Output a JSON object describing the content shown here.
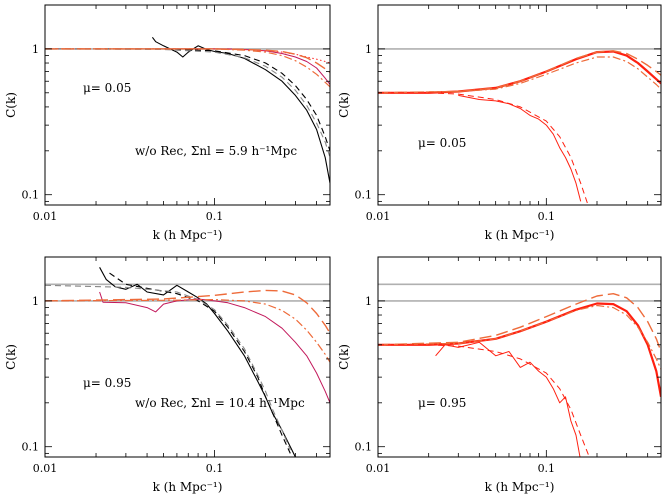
{
  "chart_data": [
    {
      "type": "line",
      "panel": "top-left",
      "xscale": "log",
      "yscale": "log",
      "xlim": [
        0.01,
        0.48
      ],
      "ylim": [
        0.085,
        2.0
      ],
      "xlabel": "k (h Mpc⁻¹)",
      "ylabel": "C(k)",
      "xticks": [
        "0.01",
        "0.1"
      ],
      "yticks": [
        "0.1",
        "1"
      ],
      "annotations": [
        "μ= 0.05",
        "w/o Rec, Σnl = 5.9 h⁻¹Mpc"
      ],
      "series": [
        {
          "style": "gray-reference",
          "color": "#b0b0b0",
          "x": [
            0.01,
            0.48
          ],
          "y": [
            1.0,
            1.0
          ]
        },
        {
          "style": "black-solid",
          "color": "#000000",
          "x": [
            0.043,
            0.045,
            0.05,
            0.06,
            0.065,
            0.07,
            0.075,
            0.08,
            0.09,
            0.1,
            0.12,
            0.15,
            0.2,
            0.25,
            0.3,
            0.35,
            0.4,
            0.45,
            0.48
          ],
          "y": [
            1.2,
            1.12,
            1.05,
            0.95,
            0.88,
            0.95,
            1.0,
            1.05,
            0.99,
            0.96,
            0.93,
            0.86,
            0.72,
            0.6,
            0.48,
            0.38,
            0.28,
            0.18,
            0.12
          ]
        },
        {
          "style": "black-dashed",
          "color": "#000000",
          "x": [
            0.01,
            0.05,
            0.1,
            0.15,
            0.2,
            0.25,
            0.3,
            0.35,
            0.4,
            0.45,
            0.48
          ],
          "y": [
            1.0,
            1.0,
            0.97,
            0.9,
            0.8,
            0.68,
            0.56,
            0.45,
            0.35,
            0.25,
            0.2
          ]
        },
        {
          "style": "gray-dashed",
          "color": "#888888",
          "x": [
            0.01,
            0.05,
            0.1,
            0.15,
            0.2,
            0.25,
            0.3,
            0.35,
            0.4,
            0.45,
            0.48
          ],
          "y": [
            1.0,
            0.99,
            0.95,
            0.87,
            0.76,
            0.64,
            0.52,
            0.41,
            0.31,
            0.23,
            0.18
          ]
        },
        {
          "style": "magenta-solid",
          "color": "#c2185b",
          "x": [
            0.05,
            0.07,
            0.1,
            0.12,
            0.15,
            0.2,
            0.25,
            0.3,
            0.35,
            0.4,
            0.45,
            0.48
          ],
          "y": [
            1.0,
            1.0,
            1.0,
            1.0,
            0.99,
            0.97,
            0.93,
            0.88,
            0.82,
            0.74,
            0.63,
            0.57
          ]
        },
        {
          "style": "red-dotted",
          "color": "#ff3030",
          "x": [
            0.01,
            0.1,
            0.15,
            0.2,
            0.25,
            0.3,
            0.35,
            0.4,
            0.45,
            0.48
          ],
          "y": [
            1.0,
            1.0,
            0.99,
            0.97,
            0.95,
            0.92,
            0.88,
            0.85,
            0.82,
            0.8
          ]
        },
        {
          "style": "orange-longdash",
          "color": "#ee6b3a",
          "x": [
            0.01,
            0.1,
            0.15,
            0.2,
            0.25,
            0.3,
            0.35,
            0.4,
            0.45,
            0.48
          ],
          "y": [
            1.0,
            1.0,
            0.99,
            0.98,
            0.96,
            0.92,
            0.87,
            0.8,
            0.73,
            0.69
          ]
        },
        {
          "style": "orange-dashdot",
          "color": "#ee6b3a",
          "x": [
            0.01,
            0.1,
            0.15,
            0.2,
            0.25,
            0.3,
            0.35,
            0.4,
            0.45,
            0.48
          ],
          "y": [
            1.0,
            1.0,
            0.98,
            0.95,
            0.9,
            0.83,
            0.75,
            0.67,
            0.59,
            0.55
          ]
        }
      ]
    },
    {
      "type": "line",
      "panel": "top-right",
      "xscale": "log",
      "yscale": "log",
      "xlim": [
        0.01,
        0.48
      ],
      "ylim": [
        0.085,
        2.0
      ],
      "xlabel": "k (h Mpc⁻¹)",
      "ylabel": "C(k)",
      "xticks": [
        "0.01",
        "0.1"
      ],
      "yticks": [
        "0.1",
        "1"
      ],
      "annotations": [
        "μ= 0.05"
      ],
      "series": [
        {
          "style": "gray-reference",
          "color": "#b0b0b0",
          "x": [
            0.01,
            0.48
          ],
          "y": [
            1.0,
            1.0
          ]
        },
        {
          "style": "red-thick-solid",
          "color": "#ff2010",
          "x": [
            0.01,
            0.02,
            0.03,
            0.05,
            0.07,
            0.1,
            0.15,
            0.2,
            0.25,
            0.3,
            0.35,
            0.4,
            0.45,
            0.48
          ],
          "y": [
            0.5,
            0.5,
            0.51,
            0.54,
            0.6,
            0.7,
            0.85,
            0.95,
            0.96,
            0.9,
            0.8,
            0.7,
            0.62,
            0.58
          ]
        },
        {
          "style": "orange-longdash",
          "color": "#ee6b3a",
          "x": [
            0.01,
            0.03,
            0.05,
            0.07,
            0.1,
            0.15,
            0.2,
            0.25,
            0.3,
            0.35,
            0.4,
            0.45,
            0.48
          ],
          "y": [
            0.5,
            0.51,
            0.54,
            0.6,
            0.7,
            0.86,
            0.95,
            0.97,
            0.93,
            0.85,
            0.77,
            0.7,
            0.66
          ]
        },
        {
          "style": "orange-dashdot",
          "color": "#ee6b3a",
          "x": [
            0.01,
            0.03,
            0.05,
            0.07,
            0.1,
            0.15,
            0.2,
            0.25,
            0.3,
            0.35,
            0.4,
            0.45,
            0.48
          ],
          "y": [
            0.5,
            0.51,
            0.53,
            0.58,
            0.67,
            0.8,
            0.88,
            0.88,
            0.82,
            0.73,
            0.64,
            0.57,
            0.53
          ]
        },
        {
          "style": "red-thin-solid",
          "color": "#ff2010",
          "x": [
            0.03,
            0.04,
            0.05,
            0.06,
            0.07,
            0.08,
            0.09,
            0.1,
            0.11,
            0.12,
            0.13,
            0.14,
            0.15,
            0.16
          ],
          "y": [
            0.48,
            0.45,
            0.44,
            0.42,
            0.39,
            0.35,
            0.33,
            0.3,
            0.26,
            0.21,
            0.18,
            0.15,
            0.12,
            0.09
          ]
        },
        {
          "style": "red-dashed",
          "color": "#ff2010",
          "x": [
            0.01,
            0.02,
            0.03,
            0.05,
            0.07,
            0.1,
            0.12,
            0.14,
            0.16,
            0.18
          ],
          "y": [
            0.5,
            0.5,
            0.49,
            0.45,
            0.4,
            0.32,
            0.25,
            0.18,
            0.12,
            0.08
          ]
        }
      ]
    },
    {
      "type": "line",
      "panel": "bottom-left",
      "xscale": "log",
      "yscale": "log",
      "xlim": [
        0.01,
        0.48
      ],
      "ylim": [
        0.085,
        2.0
      ],
      "xlabel": "k (h Mpc⁻¹)",
      "ylabel": "C(k)",
      "xticks": [
        "0.01",
        "0.1"
      ],
      "yticks": [
        "0.1",
        "1"
      ],
      "annotations": [
        "μ= 0.95",
        "w/o Rec, Σnl = 10.4 h⁻¹Mpc"
      ],
      "series": [
        {
          "style": "gray-reference",
          "color": "#b0b0b0",
          "x": [
            0.01,
            0.48
          ],
          "y": [
            1.0,
            1.0
          ]
        },
        {
          "style": "gray-reference-upper",
          "color": "#b0b0b0",
          "x": [
            0.01,
            0.48
          ],
          "y": [
            1.3,
            1.3
          ]
        },
        {
          "style": "black-solid",
          "color": "#000000",
          "x": [
            0.021,
            0.023,
            0.026,
            0.03,
            0.035,
            0.04,
            0.05,
            0.06,
            0.07,
            0.08,
            0.09,
            0.1,
            0.12,
            0.15,
            0.18,
            0.2,
            0.22,
            0.25,
            0.28,
            0.3
          ],
          "y": [
            1.7,
            1.4,
            1.25,
            1.2,
            1.3,
            1.15,
            1.1,
            1.28,
            1.15,
            1.05,
            0.95,
            0.82,
            0.62,
            0.42,
            0.28,
            0.22,
            0.17,
            0.13,
            0.1,
            0.085
          ]
        },
        {
          "style": "black-dashed",
          "color": "#000000",
          "x": [
            0.024,
            0.03,
            0.04,
            0.06,
            0.08,
            0.1,
            0.12,
            0.15,
            0.18,
            0.2,
            0.22,
            0.25,
            0.28
          ],
          "y": [
            1.55,
            1.3,
            1.22,
            1.12,
            1.0,
            0.85,
            0.66,
            0.45,
            0.3,
            0.22,
            0.17,
            0.12,
            0.09
          ]
        },
        {
          "style": "gray-dashed",
          "color": "#888888",
          "x": [
            0.01,
            0.03,
            0.06,
            0.08,
            0.1,
            0.12,
            0.15,
            0.18,
            0.2,
            0.22,
            0.25,
            0.28
          ],
          "y": [
            1.28,
            1.24,
            1.15,
            1.02,
            0.87,
            0.68,
            0.47,
            0.31,
            0.24,
            0.18,
            0.13,
            0.095
          ]
        },
        {
          "style": "magenta-solid",
          "color": "#c2185b",
          "x": [
            0.021,
            0.022,
            0.03,
            0.04,
            0.045,
            0.05,
            0.06,
            0.08,
            0.1,
            0.12,
            0.15,
            0.2,
            0.25,
            0.3,
            0.35,
            0.4,
            0.45,
            0.48
          ],
          "y": [
            1.15,
            0.98,
            0.97,
            0.9,
            0.84,
            0.95,
            1.0,
            1.03,
            1.0,
            0.97,
            0.9,
            0.78,
            0.65,
            0.52,
            0.42,
            0.32,
            0.24,
            0.2
          ]
        },
        {
          "style": "orange-longdash",
          "color": "#ee6b3a",
          "x": [
            0.01,
            0.05,
            0.1,
            0.15,
            0.2,
            0.25,
            0.3,
            0.35,
            0.4,
            0.45,
            0.48
          ],
          "y": [
            1.0,
            1.03,
            1.09,
            1.15,
            1.18,
            1.17,
            1.1,
            0.97,
            0.82,
            0.68,
            0.6
          ]
        },
        {
          "style": "orange-dashdot",
          "color": "#ee6b3a",
          "x": [
            0.01,
            0.05,
            0.1,
            0.15,
            0.2,
            0.25,
            0.3,
            0.35,
            0.4,
            0.45,
            0.48
          ],
          "y": [
            1.0,
            1.01,
            1.02,
            1.0,
            0.95,
            0.86,
            0.75,
            0.63,
            0.52,
            0.43,
            0.38
          ]
        }
      ]
    },
    {
      "type": "line",
      "panel": "bottom-right",
      "xscale": "log",
      "yscale": "log",
      "xlim": [
        0.01,
        0.48
      ],
      "ylim": [
        0.085,
        2.0
      ],
      "xlabel": "k (h Mpc⁻¹)",
      "ylabel": "C(k)",
      "xticks": [
        "0.01",
        "0.1"
      ],
      "yticks": [
        "0.1",
        "1"
      ],
      "annotations": [
        "μ= 0.95"
      ],
      "series": [
        {
          "style": "gray-reference",
          "color": "#b0b0b0",
          "x": [
            0.01,
            0.48
          ],
          "y": [
            1.0,
            1.0
          ]
        },
        {
          "style": "gray-reference-upper",
          "color": "#b0b0b0",
          "x": [
            0.01,
            0.48
          ],
          "y": [
            1.3,
            1.3
          ]
        },
        {
          "style": "red-thick-solid",
          "color": "#ff2010",
          "x": [
            0.01,
            0.02,
            0.03,
            0.05,
            0.07,
            0.1,
            0.15,
            0.2,
            0.25,
            0.3,
            0.35,
            0.4,
            0.45,
            0.48
          ],
          "y": [
            0.5,
            0.5,
            0.51,
            0.55,
            0.62,
            0.72,
            0.87,
            0.96,
            0.95,
            0.85,
            0.68,
            0.5,
            0.33,
            0.22
          ]
        },
        {
          "style": "orange-longdash",
          "color": "#ee6b3a",
          "x": [
            0.01,
            0.03,
            0.05,
            0.07,
            0.1,
            0.15,
            0.2,
            0.25,
            0.3,
            0.35,
            0.4,
            0.45,
            0.48
          ],
          "y": [
            0.5,
            0.52,
            0.58,
            0.66,
            0.78,
            0.95,
            1.08,
            1.12,
            1.05,
            0.9,
            0.72,
            0.55,
            0.45
          ]
        },
        {
          "style": "orange-dashdot",
          "color": "#ee6b3a",
          "x": [
            0.01,
            0.03,
            0.05,
            0.07,
            0.1,
            0.15,
            0.2,
            0.25,
            0.3,
            0.35,
            0.4,
            0.45,
            0.48
          ],
          "y": [
            0.5,
            0.51,
            0.55,
            0.62,
            0.72,
            0.86,
            0.93,
            0.9,
            0.8,
            0.66,
            0.52,
            0.4,
            0.34
          ]
        },
        {
          "style": "red-thin-solid",
          "color": "#ff2010",
          "x": [
            0.022,
            0.025,
            0.03,
            0.04,
            0.05,
            0.06,
            0.07,
            0.08,
            0.09,
            0.1,
            0.11,
            0.12,
            0.13,
            0.14,
            0.15,
            0.16
          ],
          "y": [
            0.42,
            0.5,
            0.48,
            0.52,
            0.42,
            0.45,
            0.35,
            0.38,
            0.33,
            0.3,
            0.25,
            0.2,
            0.22,
            0.15,
            0.12,
            0.08
          ]
        },
        {
          "style": "red-dashed",
          "color": "#ff2010",
          "x": [
            0.01,
            0.02,
            0.03,
            0.05,
            0.07,
            0.1,
            0.12,
            0.14,
            0.16,
            0.18
          ],
          "y": [
            0.5,
            0.5,
            0.49,
            0.45,
            0.4,
            0.32,
            0.25,
            0.18,
            0.12,
            0.085
          ]
        }
      ]
    }
  ]
}
